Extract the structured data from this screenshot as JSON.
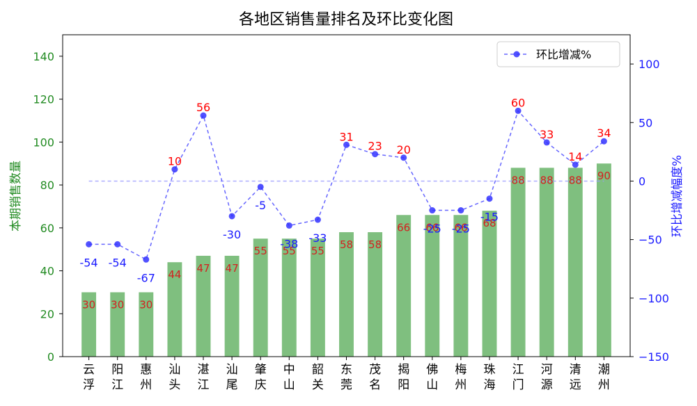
{
  "chart_data": {
    "type": "bar",
    "title": "各地区销售量排名及环比变化图",
    "categories": [
      "云浮",
      "阳江",
      "惠州",
      "汕头",
      "湛江",
      "汕尾",
      "肇庆",
      "中山",
      "韶关",
      "东莞",
      "茂名",
      "揭阳",
      "佛山",
      "梅州",
      "珠海",
      "江门",
      "河源",
      "清远",
      "潮州"
    ],
    "series": [
      {
        "name": "本期销售数量",
        "axis": "left",
        "kind": "bar",
        "color": "#7fbf7f",
        "values": [
          30,
          30,
          30,
          44,
          47,
          47,
          55,
          55,
          55,
          58,
          58,
          66,
          66,
          66,
          68,
          88,
          88,
          88,
          90
        ]
      },
      {
        "name": "环比增减%",
        "axis": "right",
        "kind": "line",
        "color": "#3333ff",
        "values": [
          -54,
          -54,
          -67,
          10,
          56,
          -30,
          -5,
          -38,
          -33,
          31,
          23,
          20,
          -25,
          -25,
          -15,
          60,
          33,
          14,
          34
        ]
      }
    ],
    "bar_labels": [
      "30",
      "30",
      "30",
      "44",
      "47",
      "47",
      "55",
      "55",
      "55",
      "58",
      "58",
      "66",
      "66",
      "66",
      "68",
      "88",
      "88",
      "88",
      "90"
    ],
    "line_labels": [
      "-54",
      "-54",
      "-67",
      "10",
      "56",
      "-30",
      "-5",
      "-38",
      "-33",
      "31",
      "23",
      "20",
      "-25",
      "-25",
      "-15",
      "60",
      "33",
      "14",
      "34"
    ],
    "ylabel_left": "本期销售数量",
    "ylabel_right": "环比增减幅度%",
    "ylim_left": [
      0,
      150
    ],
    "ylim_right": [
      -150,
      125
    ],
    "yticks_left": [
      "0",
      "20",
      "40",
      "60",
      "80",
      "100",
      "120",
      "140"
    ],
    "yticks_left_values": [
      0,
      20,
      40,
      60,
      80,
      100,
      120,
      140
    ],
    "yticks_right": [
      "−150",
      "−100",
      "−50",
      "0",
      "50",
      "100"
    ],
    "yticks_right_values": [
      -150,
      -100,
      -50,
      0,
      50,
      100
    ],
    "reference_line_value": 0,
    "legend": {
      "label": "环比增减%",
      "position": "top-right"
    },
    "colors": {
      "left_axis": "#228b22",
      "right_axis": "#1a1aff",
      "positive_label": "#ff0000",
      "negative_label": "#1a1aff",
      "bar_label": "#d42020",
      "ref_line": "#9999ff"
    }
  }
}
